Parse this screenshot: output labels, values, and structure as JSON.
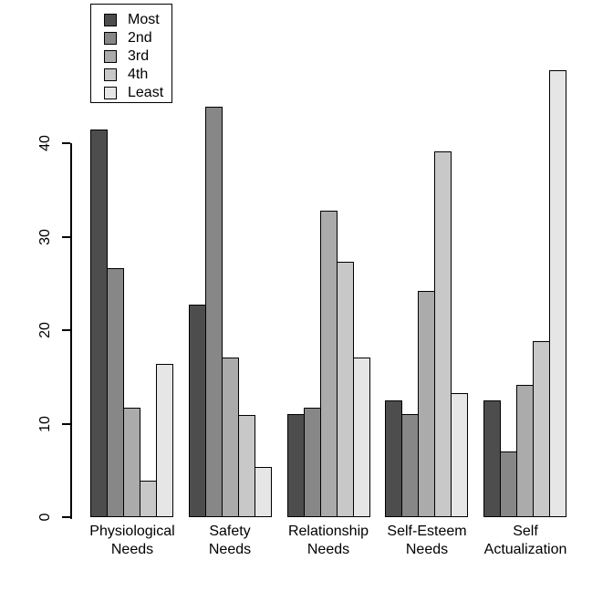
{
  "chart_data": {
    "type": "bar",
    "title": "",
    "xlabel": "",
    "ylabel": "",
    "background": "#FFFFFF",
    "grid": false,
    "bar_border_color": "#000000",
    "legend_position": "top-left",
    "ylim": [
      0,
      48
    ],
    "yticks": [
      0,
      10,
      20,
      30,
      40
    ],
    "categories": [
      [
        "Physiological",
        "Needs"
      ],
      [
        "Safety",
        "Needs"
      ],
      [
        "Relationship",
        "Needs"
      ],
      [
        "Self-Esteem",
        "Needs"
      ],
      [
        "Self",
        "Actualization"
      ]
    ],
    "series": [
      {
        "name": "Most",
        "color": "#4D4D4D",
        "values": [
          41.5,
          22.7,
          11.0,
          12.5,
          12.5
        ]
      },
      {
        "name": "2nd",
        "color": "#878787",
        "values": [
          26.6,
          43.9,
          11.7,
          11.0,
          7.0
        ]
      },
      {
        "name": "3rd",
        "color": "#ABABAB",
        "values": [
          11.7,
          17.1,
          32.8,
          24.2,
          14.1
        ]
      },
      {
        "name": "4th",
        "color": "#C8C8C8",
        "values": [
          3.9,
          10.9,
          27.3,
          39.1,
          18.8
        ]
      },
      {
        "name": "Least",
        "color": "#E6E6E6",
        "values": [
          16.4,
          5.4,
          17.1,
          13.3,
          47.8
        ]
      }
    ]
  }
}
